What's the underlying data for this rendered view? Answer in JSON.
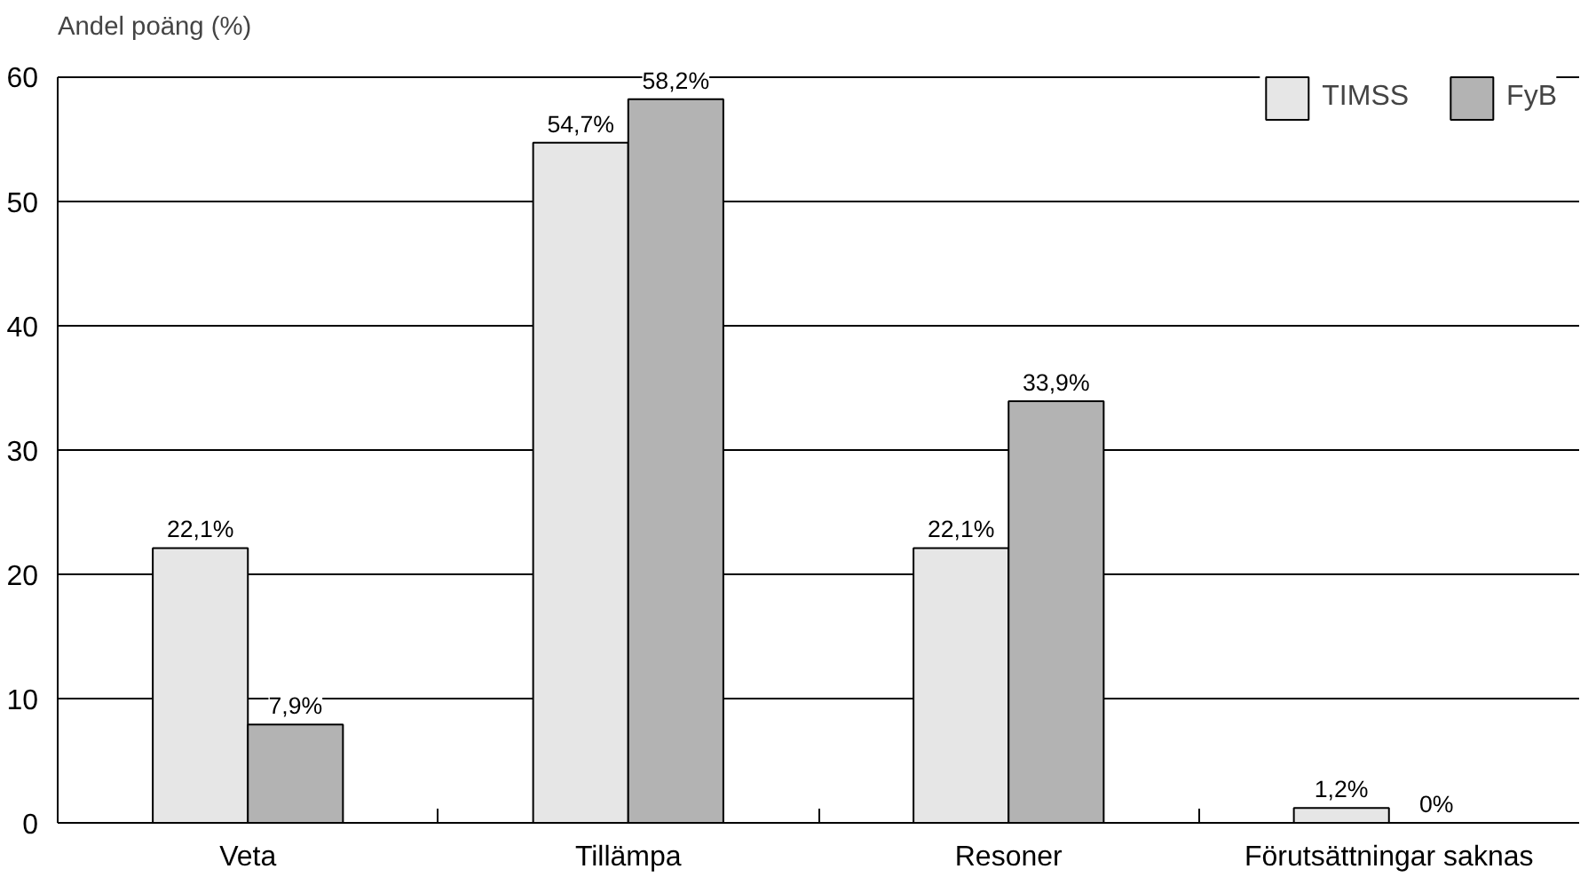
{
  "chart_data": {
    "type": "bar",
    "ylabel": "Andel poäng (%)",
    "categories": [
      "Veta",
      "Tillämpa",
      "Resoner",
      "Förutsättningar saknas"
    ],
    "series": [
      {
        "name": "TIMSS",
        "color": "#e6e6e6",
        "values": [
          22.1,
          54.7,
          22.1,
          1.2
        ],
        "value_labels": [
          "22,1%",
          "54,7%",
          "22,1%",
          "1,2%"
        ]
      },
      {
        "name": "FyB",
        "color": "#b3b3b3",
        "values": [
          7.9,
          58.2,
          33.9,
          0
        ],
        "value_labels": [
          "7,9%",
          "58,2%",
          "33,9%",
          "0%"
        ]
      }
    ],
    "ylim": [
      0,
      60
    ],
    "yticks": [
      0,
      10,
      20,
      30,
      40,
      50,
      60
    ],
    "grid": "y",
    "legend": "top right"
  }
}
